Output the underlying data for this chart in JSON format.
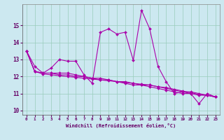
{
  "xlabel": "Windchill (Refroidissement éolien,°C)",
  "background_color": "#cce8f0",
  "plot_bg_color": "#cce8f0",
  "grid_color": "#99ccbb",
  "line_color": "#aa00aa",
  "marker_color": "#aa00aa",
  "xlim": [
    -0.5,
    23.5
  ],
  "ylim": [
    9.75,
    16.25
  ],
  "yticks": [
    10,
    11,
    12,
    13,
    14,
    15
  ],
  "xticks": [
    0,
    1,
    2,
    3,
    4,
    5,
    6,
    7,
    8,
    9,
    10,
    11,
    12,
    13,
    14,
    15,
    16,
    17,
    18,
    19,
    20,
    21,
    22,
    23
  ],
  "series": [
    [
      13.5,
      12.6,
      12.2,
      12.5,
      13.0,
      12.9,
      12.9,
      12.1,
      11.6,
      14.6,
      14.8,
      14.5,
      14.6,
      12.95,
      15.9,
      14.8,
      12.6,
      11.7,
      11.0,
      11.1,
      11.0,
      10.4,
      11.0,
      10.8
    ],
    [
      13.5,
      12.3,
      12.2,
      12.2,
      12.2,
      12.2,
      12.1,
      12.0,
      11.9,
      11.9,
      11.8,
      11.7,
      11.7,
      11.6,
      11.5,
      11.5,
      11.4,
      11.3,
      11.2,
      11.1,
      11.1,
      11.0,
      10.9,
      10.8
    ],
    [
      13.5,
      12.3,
      12.2,
      12.2,
      12.1,
      12.1,
      12.0,
      12.0,
      11.9,
      11.8,
      11.8,
      11.7,
      11.6,
      11.5,
      11.5,
      11.4,
      11.3,
      11.2,
      11.1,
      11.0,
      11.0,
      10.9,
      10.9,
      10.8
    ],
    [
      13.5,
      12.3,
      12.15,
      12.1,
      12.05,
      12.0,
      11.95,
      11.9,
      11.85,
      11.8,
      11.75,
      11.7,
      11.65,
      11.6,
      11.55,
      11.5,
      11.4,
      11.35,
      11.25,
      11.15,
      11.05,
      10.95,
      10.9,
      10.8
    ]
  ]
}
